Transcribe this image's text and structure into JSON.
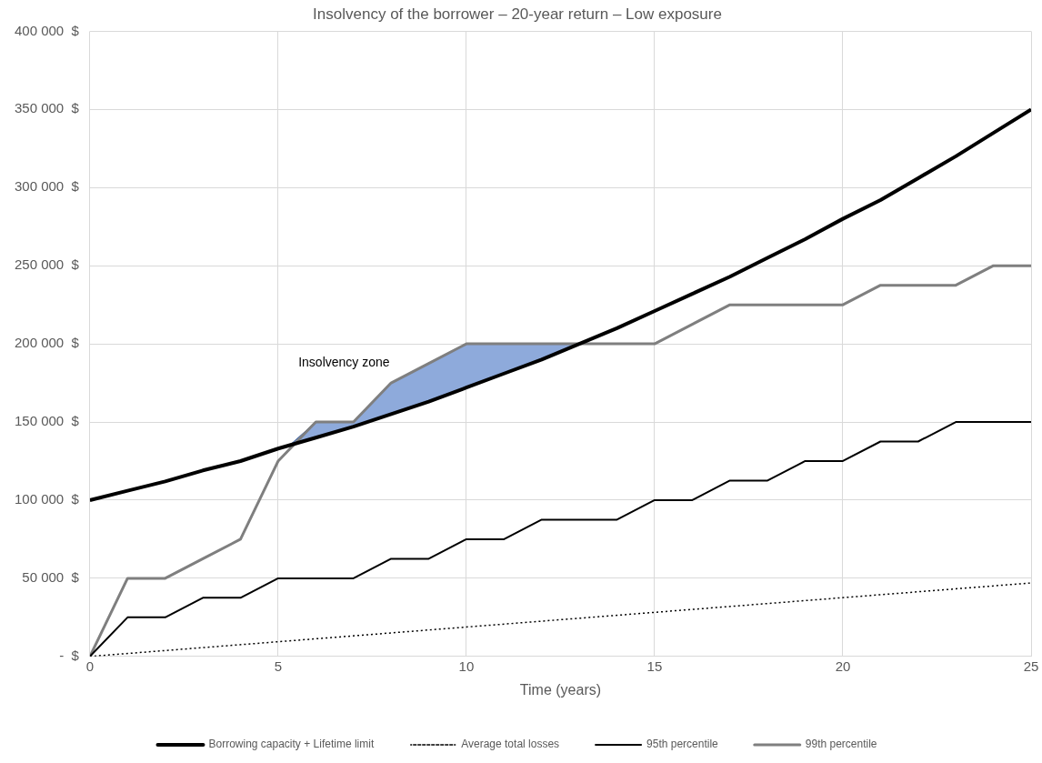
{
  "chart_data": {
    "type": "line",
    "title": "Insolvency of the borrower – 20-year return – Low exposure",
    "xlabel": "Time (years)",
    "xlim": [
      0,
      25
    ],
    "xticks": [
      0,
      5,
      10,
      15,
      20,
      25
    ],
    "ylim": [
      0,
      400000
    ],
    "yticks": [
      {
        "value": 0,
        "label": "-  $"
      },
      {
        "value": 50000,
        "label": "50 000  $"
      },
      {
        "value": 100000,
        "label": "100 000  $"
      },
      {
        "value": 150000,
        "label": "150 000  $"
      },
      {
        "value": 200000,
        "label": "200 000  $"
      },
      {
        "value": 250000,
        "label": "250 000  $"
      },
      {
        "value": 300000,
        "label": "300 000  $"
      },
      {
        "value": 350000,
        "label": "350 000  $"
      },
      {
        "value": 400000,
        "label": "400 000  $"
      }
    ],
    "grid": true,
    "legend": "bottom",
    "marker": "none",
    "series": [
      {
        "type": "area",
        "color": "#8eaadb",
        "x": [
          5.3,
          6,
          7,
          8,
          9,
          10,
          11,
          12,
          13
        ],
        "values": [
          135000,
          150000,
          150000,
          175000,
          187500,
          200000,
          200000,
          200000,
          200000
        ]
      },
      {
        "name": "Borrowing capacity + Lifetime limit",
        "color": "#000000",
        "x": [
          0,
          1,
          2,
          3,
          4,
          5,
          6,
          7,
          8,
          9,
          10,
          11,
          12,
          13,
          14,
          15,
          16,
          17,
          18,
          19,
          20,
          21,
          22,
          23,
          24,
          25
        ],
        "values": [
          100000,
          106000,
          112000,
          119000,
          125000,
          133000,
          140000,
          147000,
          155000,
          163000,
          172000,
          181000,
          190000,
          200000,
          210000,
          221000,
          232000,
          243000,
          255000,
          267000,
          280000,
          292000,
          306000,
          320000,
          335000,
          350000
        ]
      },
      {
        "name": "Average total losses",
        "color": "#000000",
        "line_style": "dotted",
        "x": [
          0,
          25
        ],
        "values": [
          0,
          47000
        ]
      },
      {
        "name": "95th percentile",
        "color": "#000000",
        "x": [
          0,
          1,
          2,
          3,
          4,
          5,
          6,
          7,
          8,
          9,
          10,
          11,
          12,
          13,
          14,
          15,
          16,
          17,
          18,
          19,
          20,
          21,
          22,
          23,
          24,
          25
        ],
        "values": [
          0,
          25000,
          25000,
          37500,
          37500,
          50000,
          50000,
          50000,
          62500,
          62500,
          75000,
          75000,
          87500,
          87500,
          87500,
          100000,
          100000,
          112500,
          112500,
          125000,
          125000,
          137500,
          137500,
          150000,
          150000,
          150000
        ]
      },
      {
        "name": "99th percentile",
        "color": "#7f7f7f",
        "x": [
          0,
          1,
          2,
          3,
          4,
          5,
          6,
          7,
          8,
          9,
          10,
          11,
          12,
          13,
          14,
          15,
          16,
          17,
          18,
          19,
          20,
          21,
          22,
          23,
          24,
          25
        ],
        "values": [
          0,
          50000,
          50000,
          62500,
          75000,
          125000,
          150000,
          150000,
          175000,
          187500,
          200000,
          200000,
          200000,
          200000,
          200000,
          200000,
          212500,
          225000,
          225000,
          225000,
          225000,
          237500,
          237500,
          237500,
          250000,
          250000
        ]
      }
    ],
    "annotations": [
      "Insolvency zone"
    ]
  }
}
